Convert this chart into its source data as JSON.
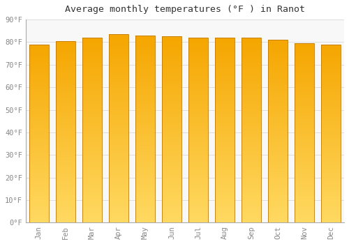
{
  "months": [
    "Jan",
    "Feb",
    "Mar",
    "Apr",
    "May",
    "Jun",
    "Jul",
    "Aug",
    "Sep",
    "Oct",
    "Nov",
    "Dec"
  ],
  "values": [
    79.0,
    80.5,
    82.0,
    83.5,
    83.0,
    82.5,
    82.0,
    82.0,
    82.0,
    81.0,
    79.5,
    79.0
  ],
  "title": "Average monthly temperatures (°F ) in Ranot",
  "ylim": [
    0,
    90
  ],
  "yticks": [
    0,
    10,
    20,
    30,
    40,
    50,
    60,
    70,
    80,
    90
  ],
  "ytick_labels": [
    "0°F",
    "10°F",
    "20°F",
    "30°F",
    "40°F",
    "50°F",
    "60°F",
    "70°F",
    "80°F",
    "90°F"
  ],
  "bar_color_top": "#F5A800",
  "bar_color_bottom": "#FFD060",
  "bar_edge_color": "#C07800",
  "background_color": "#FFFFFF",
  "plot_bg_color": "#F8F8F8",
  "grid_color": "#DDDDDD",
  "title_color": "#333333",
  "tick_color": "#888888",
  "spine_color": "#AAAAAA",
  "title_fontsize": 9.5,
  "tick_fontsize": 7.5
}
